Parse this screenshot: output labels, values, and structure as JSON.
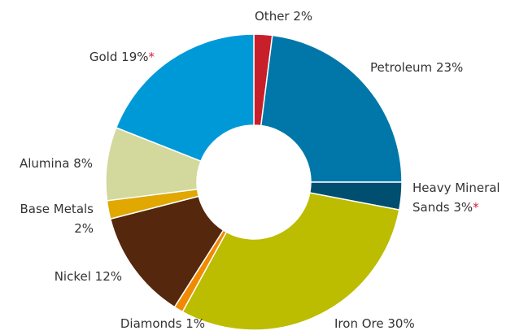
{
  "chart_data": {
    "type": "donut",
    "categories": [
      "Other",
      "Petroleum",
      "Heavy Mineral Sands",
      "Iron Ore",
      "Diamonds",
      "Nickel",
      "Base Metals",
      "Alumina",
      "Gold"
    ],
    "values": [
      2,
      23,
      3,
      30,
      1,
      12,
      2,
      8,
      19
    ],
    "value_labels": [
      "2%",
      "23%",
      "3%",
      "30%",
      "1%",
      "12%",
      "2%",
      "8%",
      "19%"
    ],
    "footnote_marks": [
      null,
      null,
      "*",
      null,
      null,
      null,
      null,
      null,
      "*"
    ],
    "colors": [
      "#c8202a",
      "#0077a8",
      "#004f70",
      "#bcbc00",
      "#f08a00",
      "#55270d",
      "#e0a800",
      "#d3d89c",
      "#0099d8"
    ]
  }
}
